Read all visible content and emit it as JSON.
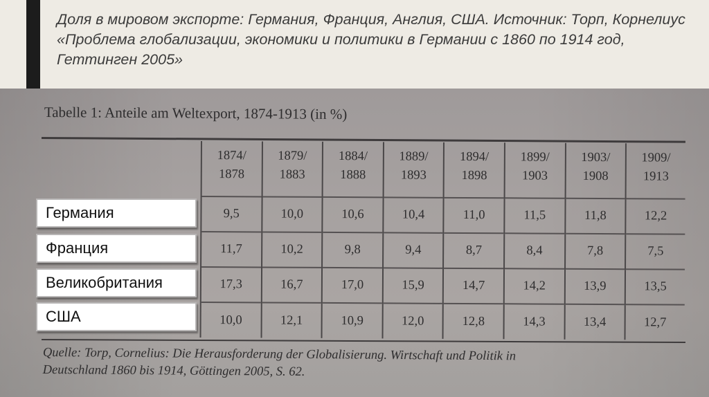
{
  "slide": {
    "title": "Доля в мировом экспорте: Германия, Франция, Англия, США. Источник: Торп, Корнелиус «Проблема глобализации, экономики и политики в Германии с 1860 по 1914 год, Геттинген 2005»"
  },
  "photo_table": {
    "caption": "Tabelle 1: Anteile am Weltexport, 1874-1913 (in %)",
    "columns": [
      [
        "1874/",
        "1878"
      ],
      [
        "1879/",
        "1883"
      ],
      [
        "1884/",
        "1888"
      ],
      [
        "1889/",
        "1893"
      ],
      [
        "1894/",
        "1898"
      ],
      [
        "1899/",
        "1903"
      ],
      [
        "1903/",
        "1908"
      ],
      [
        "1909/",
        "1913"
      ]
    ],
    "rows": [
      {
        "label": "Германия",
        "values": [
          "9,5",
          "10,0",
          "10,6",
          "10,4",
          "11,0",
          "11,5",
          "11,8",
          "12,2"
        ]
      },
      {
        "label": "Франция",
        "values": [
          "11,7",
          "10,2",
          "9,8",
          "9,4",
          "8,7",
          "8,4",
          "7,8",
          "7,5"
        ]
      },
      {
        "label": "Великобритания",
        "values": [
          "17,3",
          "16,7",
          "17,0",
          "15,9",
          "14,7",
          "14,2",
          "13,9",
          "13,5"
        ]
      },
      {
        "label": "США",
        "values": [
          "10,0",
          "12,1",
          "10,9",
          "12,0",
          "12,8",
          "14,3",
          "13,4",
          "12,7"
        ]
      }
    ],
    "source_lines": [
      "Quelle: Torp, Cornelius: Die Herausforderung der Globalisierung. Wirtschaft und Politik in",
      "Deutschland 1860 bis 1914, Göttingen 2005, S. 62."
    ]
  }
}
